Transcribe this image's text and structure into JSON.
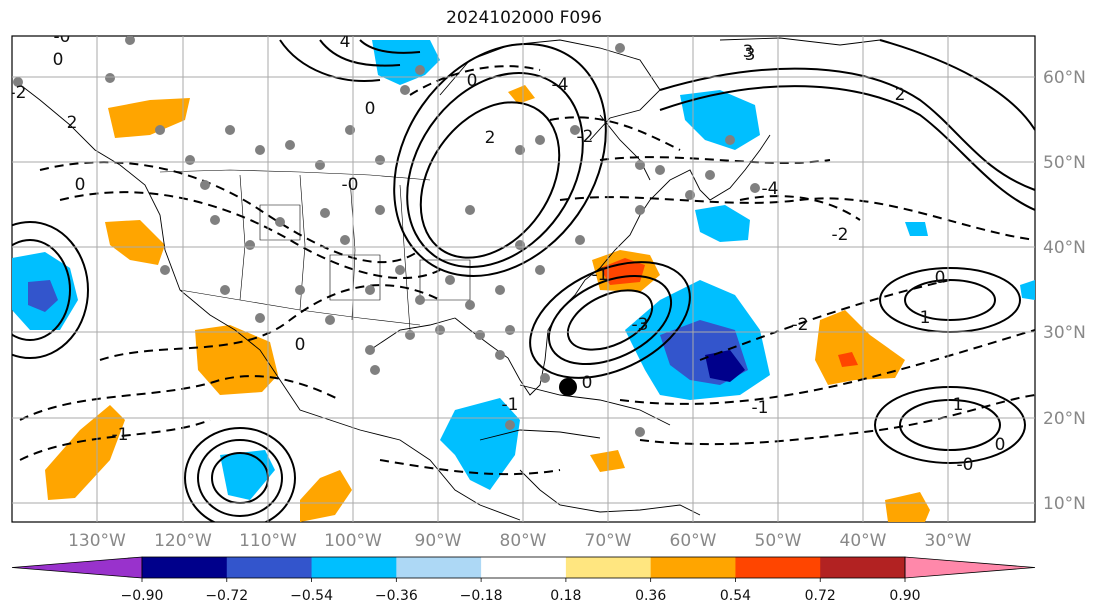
{
  "title": "2024102000 F096",
  "map": {
    "lon_labels": [
      "130°W",
      "120°W",
      "110°W",
      "100°W",
      "90°W",
      "80°W",
      "70°W",
      "60°W",
      "50°W",
      "40°W",
      "30°W"
    ],
    "lat_labels": [
      "60°N",
      "50°N",
      "40°N",
      "30°N",
      "20°N",
      "10°N"
    ],
    "contour_labels": [
      "-0",
      "0",
      "4",
      "3",
      "-2",
      "2",
      "0",
      "-4",
      "0",
      "2",
      "-2",
      "0",
      "-0",
      "-4",
      "-3",
      "-1",
      "0",
      "1",
      "-0",
      "0",
      "-1",
      "-1",
      "3",
      "-1",
      "0",
      "1",
      "0",
      "-2",
      "2",
      "-2"
    ],
    "grid_color": "#aaaaaa"
  },
  "colorbar": {
    "ticks": [
      "−0.90",
      "−0.72",
      "−0.54",
      "−0.36",
      "−0.18",
      "0.18",
      "0.36",
      "0.54",
      "0.72",
      "0.90"
    ],
    "colors": [
      "#9932cc",
      "#00008b",
      "#3355cc",
      "#00bfff",
      "#add8f5",
      "#ffffff",
      "#ffe680",
      "#ffa500",
      "#ff4500",
      "#b22222",
      "#ff88aa"
    ]
  }
}
